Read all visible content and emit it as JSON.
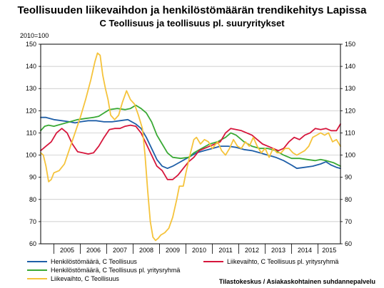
{
  "chart_data": {
    "type": "line",
    "title": "Teollisuuden liikevaihdon ja henkilöstömäärän trendikehitys Lapissa",
    "subtitle": "C Teollisuus ja teollisuus pl. suuryritykset",
    "ylabel": "2010=100",
    "ylim": [
      60,
      150
    ],
    "yticks": [
      60,
      70,
      80,
      90,
      100,
      110,
      120,
      130,
      140,
      150
    ],
    "x_categories": [
      "2005",
      "2006",
      "2007",
      "2008",
      "2009",
      "2010",
      "2011",
      "2012",
      "2013",
      "2014",
      "2015"
    ],
    "xlim": [
      2004.5,
      2015.85
    ],
    "grid": "horizontal",
    "legend_position": "bottom",
    "source": "Tilastokeskus / Asiakaskohtainen suhdannepalvelu",
    "colors": {
      "henkilosto_c": "#1f5fa8",
      "henkilosto_pl": "#3aa935",
      "liikevaihto_c": "#f5c33b",
      "liikevaihto_pl": "#d6163c",
      "grid": "#bfbfbf",
      "axis": "#000000"
    },
    "series": [
      {
        "name": "Henkilöstömäärä, C Teollisuus",
        "color_key": "henkilosto_c",
        "points": [
          [
            2004.5,
            117
          ],
          [
            2004.7,
            117
          ],
          [
            2005.0,
            116
          ],
          [
            2005.3,
            115.5
          ],
          [
            2005.6,
            115
          ],
          [
            2005.8,
            114.5
          ],
          [
            2006.0,
            115
          ],
          [
            2006.3,
            115.5
          ],
          [
            2006.6,
            115.5
          ],
          [
            2006.9,
            115
          ],
          [
            2007.2,
            115
          ],
          [
            2007.5,
            115.5
          ],
          [
            2007.8,
            116
          ],
          [
            2008.1,
            114
          ],
          [
            2008.3,
            112
          ],
          [
            2008.5,
            108
          ],
          [
            2008.7,
            103
          ],
          [
            2008.9,
            98
          ],
          [
            2009.1,
            95
          ],
          [
            2009.3,
            94
          ],
          [
            2009.5,
            95
          ],
          [
            2009.8,
            97
          ],
          [
            2010.1,
            99
          ],
          [
            2010.4,
            101
          ],
          [
            2010.7,
            102
          ],
          [
            2011.0,
            103
          ],
          [
            2011.3,
            104
          ],
          [
            2011.6,
            104
          ],
          [
            2011.9,
            103.5
          ],
          [
            2012.2,
            102.5
          ],
          [
            2012.5,
            102
          ],
          [
            2012.8,
            101
          ],
          [
            2013.1,
            100
          ],
          [
            2013.4,
            99
          ],
          [
            2013.7,
            97.5
          ],
          [
            2014.0,
            95.5
          ],
          [
            2014.2,
            94
          ],
          [
            2014.5,
            94.5
          ],
          [
            2014.8,
            95
          ],
          [
            2015.1,
            96
          ],
          [
            2015.3,
            97
          ],
          [
            2015.5,
            95.5
          ],
          [
            2015.7,
            94.5
          ],
          [
            2015.85,
            94
          ]
        ]
      },
      {
        "name": "Henkilöstömäärä, C Teollisuus pl. yritysryhmä",
        "color_key": "henkilosto_pl",
        "points": [
          [
            2004.5,
            111
          ],
          [
            2004.65,
            113
          ],
          [
            2004.8,
            113.5
          ],
          [
            2005.0,
            113
          ],
          [
            2005.3,
            114
          ],
          [
            2005.6,
            115
          ],
          [
            2005.9,
            116
          ],
          [
            2006.2,
            116.5
          ],
          [
            2006.5,
            117
          ],
          [
            2006.7,
            117.5
          ],
          [
            2006.9,
            119
          ],
          [
            2007.1,
            120.5
          ],
          [
            2007.4,
            121
          ],
          [
            2007.7,
            120.5
          ],
          [
            2007.9,
            121
          ],
          [
            2008.1,
            122.5
          ],
          [
            2008.3,
            121
          ],
          [
            2008.5,
            119
          ],
          [
            2008.7,
            115
          ],
          [
            2008.9,
            109
          ],
          [
            2009.1,
            105
          ],
          [
            2009.3,
            101
          ],
          [
            2009.5,
            99
          ],
          [
            2009.8,
            98.5
          ],
          [
            2010.1,
            99
          ],
          [
            2010.3,
            101
          ],
          [
            2010.6,
            103
          ],
          [
            2010.9,
            105
          ],
          [
            2011.2,
            106
          ],
          [
            2011.5,
            108
          ],
          [
            2011.7,
            110
          ],
          [
            2011.9,
            109
          ],
          [
            2012.2,
            106
          ],
          [
            2012.5,
            104
          ],
          [
            2012.8,
            103
          ],
          [
            2013.1,
            103
          ],
          [
            2013.4,
            102
          ],
          [
            2013.7,
            100
          ],
          [
            2014.0,
            98.5
          ],
          [
            2014.3,
            98.5
          ],
          [
            2014.6,
            98
          ],
          [
            2014.9,
            97.5
          ],
          [
            2015.1,
            98
          ],
          [
            2015.3,
            97.5
          ],
          [
            2015.6,
            96.5
          ],
          [
            2015.85,
            95
          ]
        ]
      },
      {
        "name": "Liikevaihto, C Teollisuus pl. yritysryhmä",
        "color_key": "liikevaihto_pl",
        "points": [
          [
            2004.5,
            102
          ],
          [
            2004.7,
            104
          ],
          [
            2004.9,
            106
          ],
          [
            2005.1,
            110
          ],
          [
            2005.3,
            112
          ],
          [
            2005.5,
            110
          ],
          [
            2005.7,
            105
          ],
          [
            2005.9,
            101.5
          ],
          [
            2006.1,
            101
          ],
          [
            2006.3,
            100.5
          ],
          [
            2006.5,
            101
          ],
          [
            2006.7,
            104
          ],
          [
            2006.9,
            108
          ],
          [
            2007.1,
            111.5
          ],
          [
            2007.3,
            112
          ],
          [
            2007.5,
            112
          ],
          [
            2007.7,
            113
          ],
          [
            2007.9,
            113.5
          ],
          [
            2008.1,
            113
          ],
          [
            2008.3,
            110
          ],
          [
            2008.5,
            105
          ],
          [
            2008.7,
            100
          ],
          [
            2008.9,
            95
          ],
          [
            2009.1,
            93
          ],
          [
            2009.3,
            89
          ],
          [
            2009.5,
            89
          ],
          [
            2009.7,
            91
          ],
          [
            2009.9,
            94
          ],
          [
            2010.1,
            97
          ],
          [
            2010.3,
            99
          ],
          [
            2010.5,
            102
          ],
          [
            2010.7,
            103
          ],
          [
            2010.9,
            104
          ],
          [
            2011.1,
            105
          ],
          [
            2011.3,
            106
          ],
          [
            2011.5,
            110
          ],
          [
            2011.7,
            112
          ],
          [
            2011.9,
            111.5
          ],
          [
            2012.1,
            111
          ],
          [
            2012.3,
            110
          ],
          [
            2012.5,
            109
          ],
          [
            2012.7,
            107
          ],
          [
            2012.9,
            105
          ],
          [
            2013.1,
            104
          ],
          [
            2013.3,
            103
          ],
          [
            2013.5,
            102
          ],
          [
            2013.7,
            103
          ],
          [
            2013.9,
            106
          ],
          [
            2014.1,
            108
          ],
          [
            2014.3,
            107
          ],
          [
            2014.5,
            109
          ],
          [
            2014.7,
            110
          ],
          [
            2014.9,
            112
          ],
          [
            2015.1,
            111.5
          ],
          [
            2015.3,
            112
          ],
          [
            2015.5,
            111
          ],
          [
            2015.7,
            111
          ],
          [
            2015.85,
            114
          ]
        ]
      },
      {
        "name": "Liikevaihto, C Teollisuus",
        "color_key": "liikevaihto_c",
        "points": [
          [
            2004.5,
            101
          ],
          [
            2004.6,
            100
          ],
          [
            2004.7,
            95
          ],
          [
            2004.8,
            88
          ],
          [
            2004.9,
            89
          ],
          [
            2005.0,
            92
          ],
          [
            2005.2,
            93
          ],
          [
            2005.4,
            96
          ],
          [
            2005.6,
            103
          ],
          [
            2005.8,
            110
          ],
          [
            2006.0,
            117
          ],
          [
            2006.2,
            125
          ],
          [
            2006.4,
            134
          ],
          [
            2006.55,
            142
          ],
          [
            2006.65,
            146
          ],
          [
            2006.75,
            145
          ],
          [
            2006.85,
            136
          ],
          [
            2006.95,
            130
          ],
          [
            2007.05,
            125
          ],
          [
            2007.15,
            118
          ],
          [
            2007.3,
            116
          ],
          [
            2007.45,
            118
          ],
          [
            2007.6,
            124
          ],
          [
            2007.75,
            129
          ],
          [
            2007.9,
            125
          ],
          [
            2008.05,
            123
          ],
          [
            2008.2,
            118
          ],
          [
            2008.35,
            112
          ],
          [
            2008.45,
            100
          ],
          [
            2008.55,
            84
          ],
          [
            2008.65,
            70
          ],
          [
            2008.75,
            63
          ],
          [
            2008.85,
            61.5
          ],
          [
            2008.95,
            62.5
          ],
          [
            2009.05,
            64
          ],
          [
            2009.2,
            65
          ],
          [
            2009.35,
            67
          ],
          [
            2009.5,
            72
          ],
          [
            2009.65,
            80
          ],
          [
            2009.75,
            86
          ],
          [
            2009.9,
            86
          ],
          [
            2010.0,
            92
          ],
          [
            2010.15,
            100
          ],
          [
            2010.3,
            107
          ],
          [
            2010.4,
            108
          ],
          [
            2010.55,
            105
          ],
          [
            2010.7,
            107
          ],
          [
            2010.85,
            106
          ],
          [
            2011.0,
            103
          ],
          [
            2011.2,
            106
          ],
          [
            2011.35,
            102
          ],
          [
            2011.5,
            100
          ],
          [
            2011.65,
            103
          ],
          [
            2011.8,
            107
          ],
          [
            2011.95,
            104
          ],
          [
            2012.1,
            103
          ],
          [
            2012.25,
            106
          ],
          [
            2012.4,
            104
          ],
          [
            2012.55,
            108
          ],
          [
            2012.7,
            104
          ],
          [
            2012.85,
            101
          ],
          [
            2013.0,
            103
          ],
          [
            2013.15,
            99
          ],
          [
            2013.3,
            103
          ],
          [
            2013.45,
            101
          ],
          [
            2013.6,
            101
          ],
          [
            2013.75,
            103
          ],
          [
            2013.9,
            103
          ],
          [
            2014.05,
            101
          ],
          [
            2014.2,
            100
          ],
          [
            2014.35,
            101
          ],
          [
            2014.5,
            102
          ],
          [
            2014.65,
            104
          ],
          [
            2014.8,
            108
          ],
          [
            2014.95,
            109
          ],
          [
            2015.1,
            110
          ],
          [
            2015.25,
            109
          ],
          [
            2015.4,
            110
          ],
          [
            2015.55,
            106
          ],
          [
            2015.7,
            107
          ],
          [
            2015.85,
            104
          ]
        ]
      }
    ]
  }
}
